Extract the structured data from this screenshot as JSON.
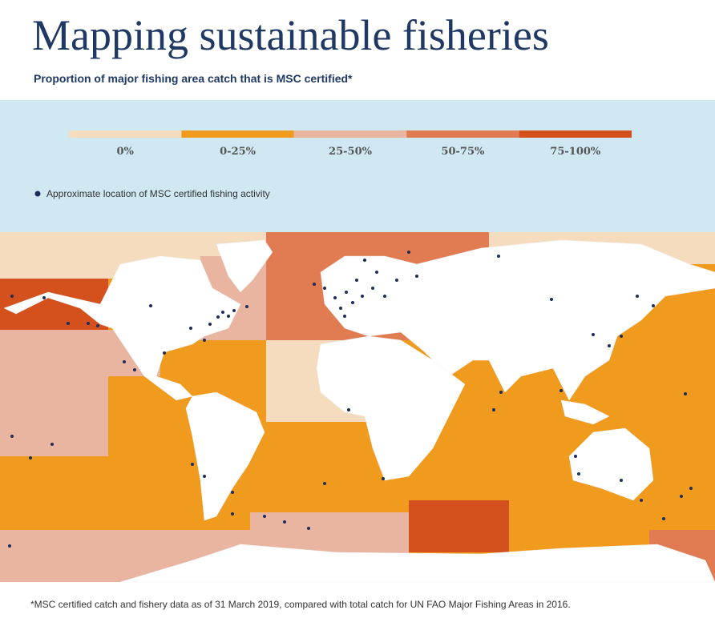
{
  "header": {
    "title": "Mapping sustainable fisheries",
    "subtitle": "Proportion of major fishing area catch that is MSC certified*"
  },
  "legend": {
    "items": [
      {
        "label": "0%",
        "color": "#f6dcbf"
      },
      {
        "label": "0-25%",
        "color": "#f09a1e"
      },
      {
        "label": "25-50%",
        "color": "#e9b4a0"
      },
      {
        "label": "50-75%",
        "color": "#e07b52"
      },
      {
        "label": "75-100%",
        "color": "#d4501c"
      }
    ],
    "dot_label": "Approximate location of MSC certified fishing activity",
    "dot_color": "#1f2d5a"
  },
  "footnote": "*MSC certified catch and fishery data as of 31 March 2019, compared with total catch for UN FAO Major Fishing Areas in 2016."
}
